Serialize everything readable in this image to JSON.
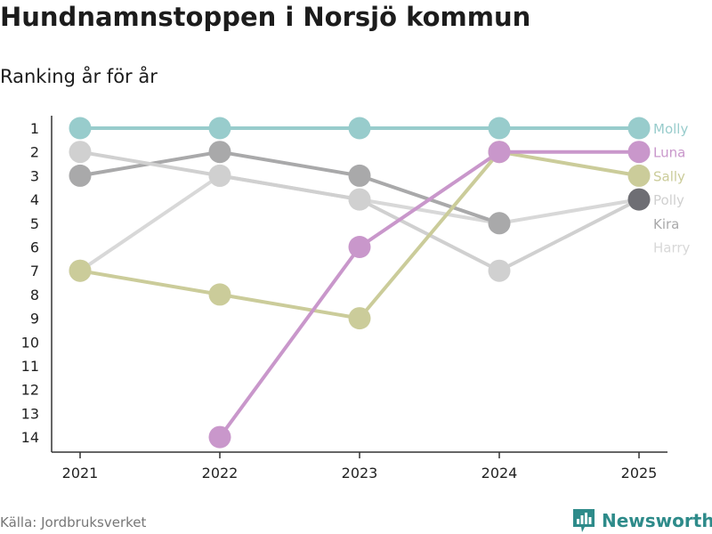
{
  "title": "Hundnamnstoppen i Norsjö kommun",
  "subtitle": "Ranking år för år",
  "source": "Källa: Jordbruksverket",
  "brand": "Newsworthy",
  "brand_color": "#2e8b8a",
  "chart_data": {
    "type": "line",
    "x": [
      "2021",
      "2022",
      "2023",
      "2024",
      "2025"
    ],
    "y_ticks": [
      1,
      2,
      3,
      4,
      5,
      6,
      7,
      8,
      9,
      10,
      11,
      12,
      13,
      14
    ],
    "ylim": [
      14,
      1
    ],
    "y_inverted": true,
    "series": [
      {
        "name": "Harry",
        "color": "#d8d8d8",
        "values": [
          7,
          3,
          4,
          5,
          4
        ]
      },
      {
        "name": "Kira",
        "color": "#a9a9aa",
        "values": [
          3,
          2,
          3,
          5,
          null
        ]
      },
      {
        "name": "Polly",
        "color": "#d0d0d0",
        "values": [
          2,
          3,
          4,
          7,
          4
        ]
      },
      {
        "name": "Sally",
        "color": "#cbcc9a",
        "values": [
          7,
          8,
          9,
          2,
          3
        ]
      },
      {
        "name": "Luna",
        "color": "#c997cb",
        "values": [
          null,
          14,
          6,
          2,
          2
        ]
      },
      {
        "name": "Molly",
        "color": "#98cccc",
        "values": [
          1,
          1,
          1,
          1,
          1
        ]
      }
    ],
    "marker_colors": {
      "Polly_2025": "#6e6e74"
    }
  }
}
